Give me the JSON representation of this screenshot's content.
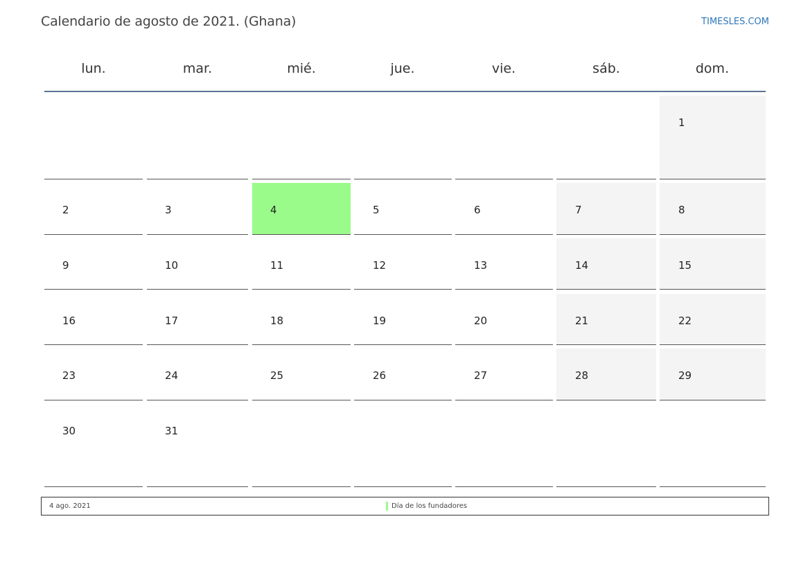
{
  "header": {
    "title": "Calendario de agosto de 2021. (Ghana)",
    "brand": "TIMESLES.COM"
  },
  "weekdays": [
    "lun.",
    "mar.",
    "mié.",
    "jue.",
    "vie.",
    "sáb.",
    "dom."
  ],
  "colors": {
    "holiday": "#9afb8b",
    "weekend": "#f4f4f4",
    "header_rule": "#5b7394",
    "brand": "#2f77b8"
  },
  "weeks": [
    [
      "",
      "",
      "",
      "",
      "",
      "",
      "1"
    ],
    [
      "2",
      "3",
      "4",
      "5",
      "6",
      "7",
      "8"
    ],
    [
      "9",
      "10",
      "11",
      "12",
      "13",
      "14",
      "15"
    ],
    [
      "16",
      "17",
      "18",
      "19",
      "20",
      "21",
      "22"
    ],
    [
      "23",
      "24",
      "25",
      "26",
      "27",
      "28",
      "29"
    ],
    [
      "30",
      "31",
      "",
      "",
      "",
      "",
      ""
    ]
  ],
  "holidays": [
    "4"
  ],
  "legend": {
    "date": "4 ago. 2021",
    "name": "Día de los fundadores"
  }
}
